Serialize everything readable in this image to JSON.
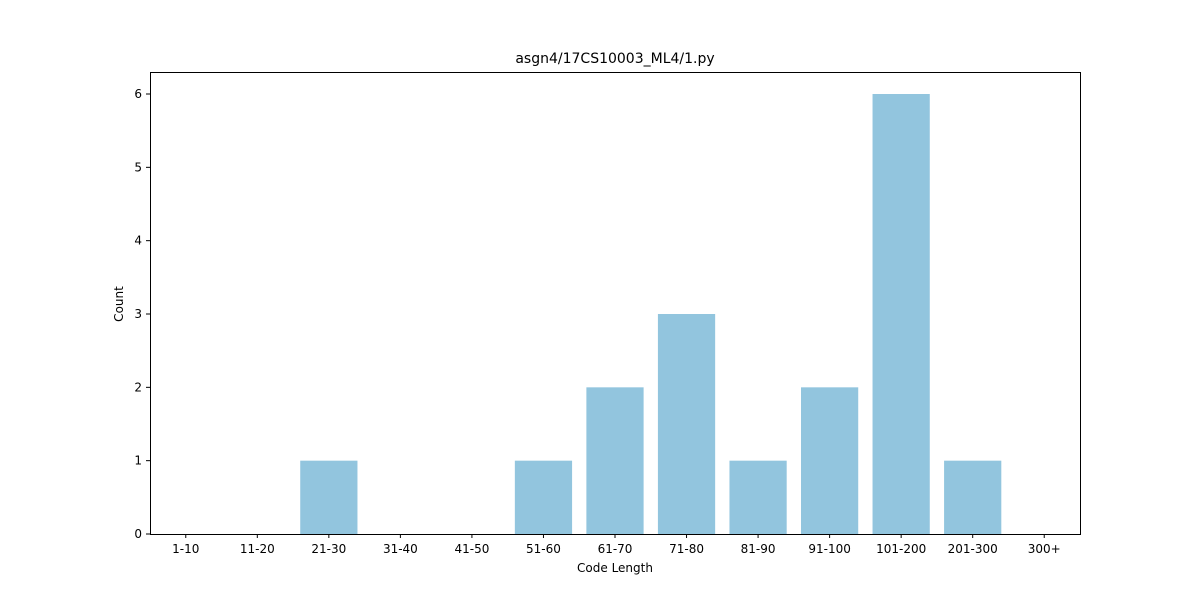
{
  "chart_data": {
    "type": "bar",
    "title": "asgn4/17CS10003_ML4/1.py",
    "xlabel": "Code Length",
    "ylabel": "Count",
    "categories": [
      "1-10",
      "11-20",
      "21-30",
      "31-40",
      "41-50",
      "51-60",
      "61-70",
      "71-80",
      "81-90",
      "91-100",
      "101-200",
      "201-300",
      "300+"
    ],
    "values": [
      0,
      0,
      1,
      0,
      0,
      1,
      2,
      3,
      1,
      2,
      6,
      1,
      0
    ],
    "ylim": [
      0,
      6.3
    ],
    "yticks": [
      0,
      1,
      2,
      3,
      4,
      5,
      6
    ],
    "bar_color": "#92c5de",
    "grid": false
  }
}
